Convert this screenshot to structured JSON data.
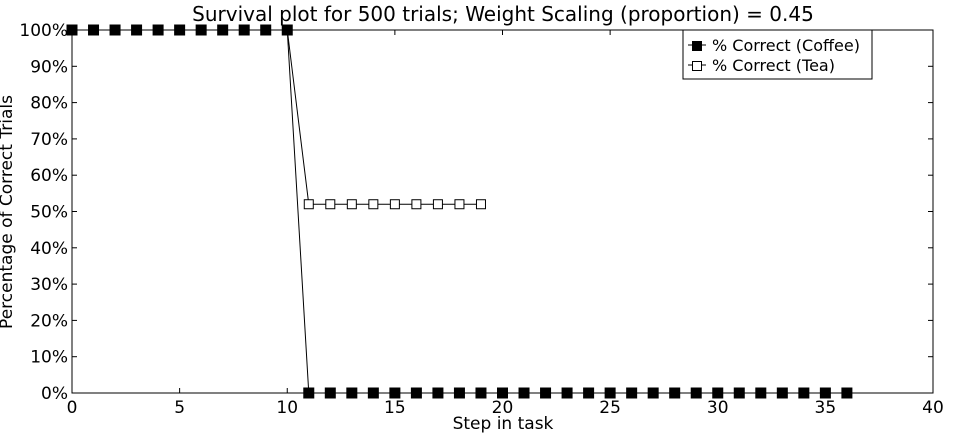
{
  "chart_data": {
    "type": "line",
    "title": "Survival plot for 500 trials; Weight Scaling (proportion) = 0.45",
    "xlabel": "Step in task",
    "ylabel": "Percentage of Correct Trials",
    "xlim": [
      0,
      40
    ],
    "ylim": [
      0,
      100
    ],
    "x_ticks": [
      0,
      5,
      10,
      15,
      20,
      25,
      30,
      35,
      40
    ],
    "y_ticks": [
      0,
      10,
      20,
      30,
      40,
      50,
      60,
      70,
      80,
      90,
      100
    ],
    "y_tick_labels": [
      "0%",
      "10%",
      "20%",
      "30%",
      "40%",
      "50%",
      "60%",
      "70%",
      "80%",
      "90%",
      "100%"
    ],
    "grid": false,
    "legend_position": "top-right",
    "series": [
      {
        "name": "% Correct (Coffee)",
        "marker": "filled-square",
        "color": "#000000",
        "x": [
          0,
          1,
          2,
          3,
          4,
          5,
          6,
          7,
          8,
          9,
          10,
          11,
          12,
          13,
          14,
          15,
          16,
          17,
          18,
          19,
          20,
          21,
          22,
          23,
          24,
          25,
          26,
          27,
          28,
          29,
          30,
          31,
          32,
          33,
          34,
          35,
          36
        ],
        "y": [
          100,
          100,
          100,
          100,
          100,
          100,
          100,
          100,
          100,
          100,
          100,
          0,
          0,
          0,
          0,
          0,
          0,
          0,
          0,
          0,
          0,
          0,
          0,
          0,
          0,
          0,
          0,
          0,
          0,
          0,
          0,
          0,
          0,
          0,
          0,
          0,
          0
        ]
      },
      {
        "name": "% Correct (Tea)",
        "marker": "open-square",
        "color": "#000000",
        "x": [
          0,
          1,
          2,
          3,
          4,
          5,
          6,
          7,
          8,
          9,
          10,
          11,
          12,
          13,
          14,
          15,
          16,
          17,
          18,
          19
        ],
        "y": [
          100,
          100,
          100,
          100,
          100,
          100,
          100,
          100,
          100,
          100,
          100,
          52,
          52,
          52,
          52,
          52,
          52,
          52,
          52,
          52
        ]
      }
    ]
  }
}
